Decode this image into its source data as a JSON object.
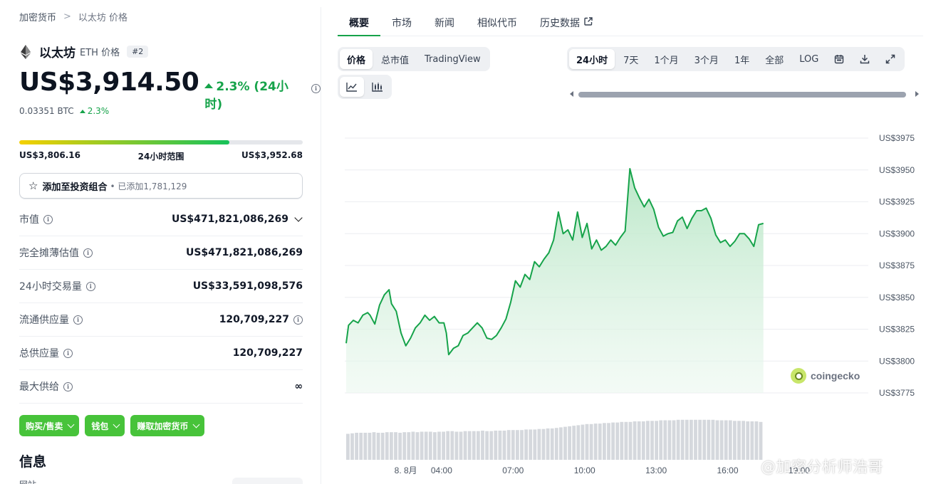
{
  "breadcrumb": {
    "root": "加密货币",
    "separator": ">",
    "current": "以太坊 价格"
  },
  "coin": {
    "name": "以太坊",
    "symbol_label": "ETH 价格",
    "rank": "#2",
    "price": "US$3,914.50",
    "change_24h": "2.3% (24小时)",
    "btc_price": "0.03351 BTC",
    "btc_change": "2.3%",
    "range_low": "US$3,806.16",
    "range_label": "24小时范围",
    "range_high": "US$3,952.68",
    "range_position": 0.74
  },
  "portfolio": {
    "label": "添加至投资组合",
    "sub": "• 已添加1,781,129"
  },
  "stats": [
    {
      "label": "市值",
      "value": "US$471,821,086,269",
      "has_info": true,
      "has_chevron": true
    },
    {
      "label": "完全摊薄估值",
      "value": "US$471,821,086,269",
      "has_info": true
    },
    {
      "label": "24小时交易量",
      "value": "US$33,591,098,576",
      "has_info": true
    },
    {
      "label": "流通供应量",
      "value": "120,709,227",
      "has_info": true,
      "value_info": true
    },
    {
      "label": "总供应量",
      "value": "120,709,227",
      "has_info": true
    },
    {
      "label": "最大供给",
      "value": "∞",
      "has_info": true
    }
  ],
  "actions": {
    "buy_sell": "购买/售卖",
    "wallet": "钱包",
    "earn": "赚取加密货币"
  },
  "info": {
    "title": "信息",
    "first_label": "网站"
  },
  "tabs": [
    "概要",
    "市场",
    "新闻",
    "相似代币",
    "历史数据"
  ],
  "view_tabs": [
    "价格",
    "总市值",
    "TradingView"
  ],
  "time_ranges": [
    "24小时",
    "7天",
    "1个月",
    "3个月",
    "1年",
    "全部",
    "LOG"
  ],
  "icons": {
    "calendar": "calendar-icon",
    "download": "download-icon",
    "expand": "expand-icon",
    "line_chart": "line-chart-icon",
    "candle_chart": "candlestick-icon",
    "star": "star-icon",
    "eth": "ethereum-logo",
    "external": "external-link-icon",
    "info": "info-icon"
  },
  "colors": {
    "up": "#16a34a",
    "line": "#16a34a",
    "area_top": "#b7e6c5",
    "action_green": "#47c33a"
  },
  "watermark": {
    "brand": "coingecko",
    "overlay": "@加密分析师浩哥"
  },
  "chart_data": {
    "type": "area",
    "title": "",
    "xlabel": "",
    "ylabel": "",
    "y_ticks": [
      "US$3975",
      "US$3950",
      "US$3925",
      "US$3900",
      "US$3875",
      "US$3850",
      "US$3825",
      "US$3800",
      "US$3775"
    ],
    "ylim": [
      3775,
      3975
    ],
    "x_ticks": [
      {
        "label": "8. 8月",
        "t": 2.5
      },
      {
        "label": "04:00",
        "t": 4
      },
      {
        "label": "07:00",
        "t": 7
      },
      {
        "label": "10:00",
        "t": 10
      },
      {
        "label": "13:00",
        "t": 13
      },
      {
        "label": "16:00",
        "t": 16
      },
      {
        "label": "19:00",
        "t": 19
      }
    ],
    "x_range": [
      0,
      21.9
    ],
    "grid": true,
    "series": [
      {
        "values": [
          [
            0.0,
            3814
          ],
          [
            0.1,
            3828
          ],
          [
            0.3,
            3832
          ],
          [
            0.5,
            3830
          ],
          [
            0.7,
            3836
          ],
          [
            0.9,
            3838
          ],
          [
            1.0,
            3836
          ],
          [
            1.2,
            3829
          ],
          [
            1.4,
            3844
          ],
          [
            1.6,
            3852
          ],
          [
            1.8,
            3856
          ],
          [
            1.9,
            3845
          ],
          [
            2.1,
            3839
          ],
          [
            2.3,
            3822
          ],
          [
            2.5,
            3812
          ],
          [
            2.7,
            3818
          ],
          [
            2.9,
            3826
          ],
          [
            3.1,
            3830
          ],
          [
            3.3,
            3836
          ],
          [
            3.5,
            3832
          ],
          [
            3.7,
            3835
          ],
          [
            3.9,
            3830
          ],
          [
            4.1,
            3830
          ],
          [
            4.2,
            3822
          ],
          [
            4.3,
            3805
          ],
          [
            4.5,
            3810
          ],
          [
            4.7,
            3812
          ],
          [
            4.9,
            3820
          ],
          [
            5.1,
            3822
          ],
          [
            5.3,
            3826
          ],
          [
            5.5,
            3830
          ],
          [
            5.7,
            3826
          ],
          [
            5.9,
            3818
          ],
          [
            6.1,
            3817
          ],
          [
            6.3,
            3820
          ],
          [
            6.5,
            3826
          ],
          [
            6.7,
            3833
          ],
          [
            6.9,
            3846
          ],
          [
            7.1,
            3863
          ],
          [
            7.3,
            3858
          ],
          [
            7.5,
            3868
          ],
          [
            7.7,
            3864
          ],
          [
            7.9,
            3878
          ],
          [
            8.1,
            3874
          ],
          [
            8.3,
            3880
          ],
          [
            8.5,
            3885
          ],
          [
            8.7,
            3895
          ],
          [
            8.9,
            3917
          ],
          [
            9.1,
            3900
          ],
          [
            9.3,
            3903
          ],
          [
            9.5,
            3895
          ],
          [
            9.7,
            3917
          ],
          [
            9.9,
            3897
          ],
          [
            10.1,
            3908
          ],
          [
            10.3,
            3888
          ],
          [
            10.5,
            3895
          ],
          [
            10.7,
            3887
          ],
          [
            10.9,
            3890
          ],
          [
            11.1,
            3895
          ],
          [
            11.3,
            3891
          ],
          [
            11.5,
            3897
          ],
          [
            11.7,
            3902
          ],
          [
            11.9,
            3951
          ],
          [
            12.1,
            3936
          ],
          [
            12.3,
            3928
          ],
          [
            12.5,
            3921
          ],
          [
            12.7,
            3927
          ],
          [
            12.9,
            3919
          ],
          [
            13.1,
            3905
          ],
          [
            13.3,
            3898
          ],
          [
            13.5,
            3900
          ],
          [
            13.7,
            3901
          ],
          [
            13.9,
            3910
          ],
          [
            14.1,
            3913
          ],
          [
            14.3,
            3904
          ],
          [
            14.5,
            3912
          ],
          [
            14.7,
            3918
          ],
          [
            14.9,
            3918
          ],
          [
            15.1,
            3920
          ],
          [
            15.3,
            3912
          ],
          [
            15.5,
            3899
          ],
          [
            15.7,
            3893
          ],
          [
            15.9,
            3895
          ],
          [
            16.1,
            3890
          ],
          [
            16.3,
            3894
          ],
          [
            16.5,
            3900
          ],
          [
            16.7,
            3900
          ],
          [
            16.9,
            3896
          ],
          [
            17.1,
            3890
          ],
          [
            17.3,
            3907
          ],
          [
            17.5,
            3908
          ]
        ]
      }
    ],
    "volume_relative": [
      0.48,
      0.49,
      0.5,
      0.5,
      0.5,
      0.5,
      0.51,
      0.5,
      0.5,
      0.51,
      0.51,
      0.51,
      0.5,
      0.51,
      0.51,
      0.52,
      0.51,
      0.52,
      0.52,
      0.52,
      0.51,
      0.52,
      0.52,
      0.53,
      0.53,
      0.52,
      0.52,
      0.53,
      0.53,
      0.53,
      0.53,
      0.54,
      0.53,
      0.53,
      0.54,
      0.54,
      0.54,
      0.55,
      0.55,
      0.55,
      0.55,
      0.56,
      0.56,
      0.56,
      0.57,
      0.57,
      0.58,
      0.58,
      0.59,
      0.6,
      0.61,
      0.62,
      0.63,
      0.64,
      0.65,
      0.66,
      0.66,
      0.67,
      0.67,
      0.68,
      0.68,
      0.69,
      0.69,
      0.7,
      0.7,
      0.7,
      0.71,
      0.71,
      0.71,
      0.72,
      0.72,
      0.72,
      0.73,
      0.73,
      0.73,
      0.73,
      0.74,
      0.74,
      0.74,
      0.74,
      0.74,
      0.74,
      0.74,
      0.74,
      0.74,
      0.73,
      0.73,
      0.73,
      0.73,
      0.72,
      0.72,
      0.72,
      0.71,
      0.71,
      0.71,
      0.7
    ]
  }
}
